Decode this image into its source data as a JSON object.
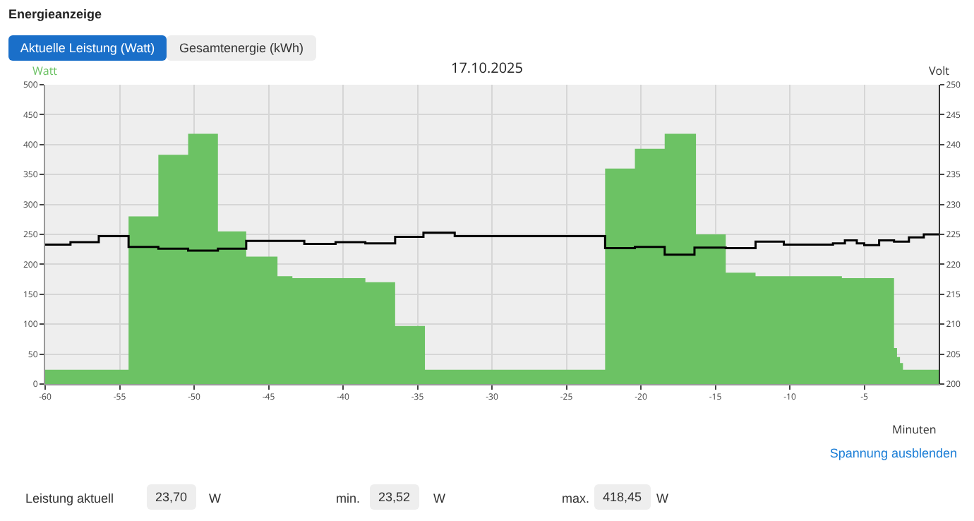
{
  "chart_data": {
    "type": "area",
    "title": "Energieanzeige",
    "subtitle": "17.10.2025",
    "xlabel": "Minuten",
    "ylabel": "Watt",
    "y2label": "Volt",
    "annotations": [
      "Aktuelle Leistung (Watt)",
      "Gesamtenergie (kWh)",
      "Spannung ausblenden",
      "Leistung aktuell",
      "23,70",
      "W",
      "min.",
      "23,52",
      "W",
      "max.",
      "418,45",
      "W"
    ],
    "xlim": [
      -60,
      0
    ],
    "xticks": [
      -60,
      -55,
      -50,
      -45,
      -40,
      -35,
      -30,
      -25,
      -20,
      -15,
      -10,
      -5
    ],
    "ylim": [
      0,
      500
    ],
    "yticks": [
      0,
      50,
      100,
      150,
      200,
      250,
      300,
      350,
      400,
      450,
      500
    ],
    "y2lim": [
      200,
      250
    ],
    "y2ticks": [
      200,
      205,
      210,
      215,
      220,
      225,
      230,
      235,
      240,
      245,
      250
    ],
    "grid": true,
    "legend": false,
    "series": [
      {
        "color": "#6cc264",
        "x": [
          -60,
          -54.4,
          -52.4,
          -50.4,
          -48.4,
          -46.5,
          -44.4,
          -43.4,
          -38.5,
          -36.5,
          -34.5,
          -22.4,
          -20.4,
          -18.4,
          -16.3,
          -14.3,
          -12.3,
          -6.5,
          -3.0,
          -2.8,
          -2.6,
          -2.4,
          0
        ],
        "values": [
          24,
          280,
          383,
          418,
          255,
          213,
          180,
          177,
          170,
          97,
          24,
          360,
          393,
          418,
          250,
          186,
          180,
          177,
          60,
          45,
          35,
          24,
          24
        ]
      },
      {
        "type": "step",
        "axis": "y2",
        "color": "#000000",
        "x": [
          -60,
          -58.3,
          -56.4,
          -54.4,
          -52.4,
          -50.4,
          -48.4,
          -46.5,
          -42.6,
          -40.5,
          -38.5,
          -36.5,
          -34.6,
          -32.5,
          -22.4,
          -20.4,
          -18.4,
          -16.4,
          -14.3,
          -12.3,
          -10.4,
          -7.1,
          -6.3,
          -5.5,
          -5,
          -4,
          -3,
          -2,
          -1,
          0
        ],
        "values": [
          223.3,
          223.7,
          224.7,
          222.9,
          222.6,
          222.3,
          222.6,
          223.9,
          223.4,
          223.7,
          223.5,
          224.6,
          225.3,
          224.7,
          222.7,
          222.9,
          221.6,
          222.8,
          222.7,
          223.8,
          223.3,
          223.5,
          224,
          223.5,
          223.2,
          224,
          223.8,
          224.5,
          225,
          224.9
        ]
      }
    ]
  }
}
